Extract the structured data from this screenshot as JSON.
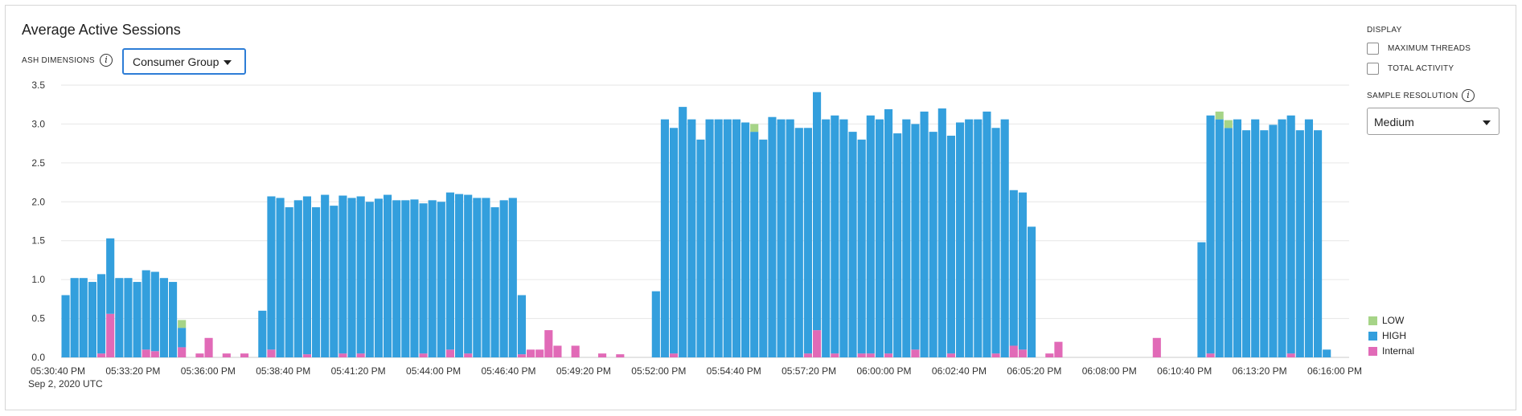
{
  "header": {
    "title": "Average Active Sessions",
    "dimensions_label": "ASH DIMENSIONS",
    "dimension_value": "Consumer Group"
  },
  "side": {
    "display_label": "DISPLAY",
    "max_threads_label": "MAXIMUM THREADS",
    "max_threads_checked": false,
    "total_activity_label": "TOTAL ACTIVITY",
    "total_activity_checked": false,
    "sample_resolution_label": "SAMPLE RESOLUTION",
    "sample_resolution_value": "Medium"
  },
  "chart_data": {
    "type": "bar",
    "stacked": true,
    "y_ticks": [
      0.0,
      0.5,
      1.0,
      1.5,
      2.0,
      2.5,
      3.0,
      3.5
    ],
    "ylim": [
      0,
      3.5
    ],
    "x_tick_labels": [
      "05:30:40 PM",
      "05:33:20 PM",
      "05:36:00 PM",
      "05:38:40 PM",
      "05:41:20 PM",
      "05:44:00 PM",
      "05:46:40 PM",
      "05:49:20 PM",
      "05:52:00 PM",
      "05:54:40 PM",
      "05:57:20 PM",
      "06:00:00 PM",
      "06:02:40 PM",
      "06:05:20 PM",
      "06:08:00 PM",
      "06:10:40 PM",
      "06:13:20 PM",
      "06:16:00 PM"
    ],
    "x_sublabel": "Sep 2, 2020 UTC",
    "grid": true,
    "legend_position": "bottom-right",
    "series": [
      {
        "name": "LOW",
        "color": "#a6d487",
        "values": [
          0,
          0,
          0,
          0,
          0,
          0,
          0,
          0,
          0,
          0,
          0,
          0,
          0,
          0.1,
          0,
          0,
          0,
          0,
          0,
          0,
          0,
          0,
          0,
          0,
          0,
          0,
          0,
          0,
          0,
          0,
          0,
          0,
          0,
          0,
          0,
          0,
          0,
          0,
          0,
          0,
          0,
          0,
          0,
          0,
          0,
          0,
          0,
          0,
          0,
          0,
          0,
          0,
          0,
          0,
          0,
          0,
          0,
          0,
          0,
          0,
          0,
          0,
          0,
          0,
          0,
          0,
          0,
          0,
          0,
          0,
          0,
          0,
          0,
          0,
          0,
          0,
          0,
          0.1,
          0,
          0,
          0,
          0,
          0,
          0,
          0,
          0,
          0,
          0,
          0,
          0,
          0,
          0,
          0,
          0,
          0,
          0,
          0,
          0,
          0,
          0,
          0,
          0,
          0,
          0,
          0,
          0,
          0,
          0,
          0,
          0,
          0,
          0,
          0,
          0,
          0,
          0,
          0,
          0,
          0,
          0,
          0,
          0,
          0,
          0,
          0,
          0,
          0,
          0,
          0,
          0.1,
          0.1,
          0,
          0,
          0,
          0,
          0,
          0,
          0,
          0,
          0,
          0,
          0,
          0,
          0
        ]
      },
      {
        "name": "HIGH",
        "color": "#339fdd",
        "values": [
          0.8,
          1.02,
          1.02,
          0.97,
          1.02,
          0.97,
          1.02,
          1.02,
          0.97,
          1.02,
          1.02,
          1.02,
          0.97,
          0.25,
          0,
          0,
          0,
          0,
          0,
          0,
          0,
          0,
          0.6,
          1.97,
          2.05,
          1.93,
          2.02,
          2.03,
          1.93,
          2.09,
          1.95,
          2.03,
          2.05,
          2.02,
          2.0,
          2.04,
          2.09,
          2.02,
          2.02,
          2.03,
          1.93,
          2.02,
          2.0,
          2.02,
          2.1,
          2.04,
          2.05,
          2.05,
          1.93,
          2.02,
          2.05,
          0.76,
          0,
          0,
          0,
          0,
          0,
          0,
          0,
          0,
          0,
          0,
          0,
          0,
          0,
          0,
          0.85,
          3.06,
          2.9,
          3.22,
          3.06,
          2.8,
          3.06,
          3.06,
          3.06,
          3.06,
          3.02,
          2.9,
          2.8,
          3.09,
          3.06,
          3.06,
          2.95,
          2.9,
          3.06,
          3.06,
          3.06,
          3.06,
          2.9,
          2.75,
          3.06,
          3.06,
          3.14,
          2.88,
          3.06,
          2.9,
          3.16,
          2.9,
          3.2,
          2.8,
          3.02,
          3.06,
          3.06,
          3.16,
          2.9,
          3.06,
          2.0,
          2.02,
          1.68,
          0,
          0,
          0,
          0,
          0,
          0,
          0,
          0,
          0,
          0,
          0,
          0,
          0,
          0,
          0,
          0,
          0,
          0,
          1.48,
          3.06,
          3.06,
          2.95,
          3.06,
          2.92,
          3.06,
          2.92,
          2.99,
          3.06,
          3.06,
          2.92,
          3.06,
          2.92,
          0.1,
          0
        ]
      },
      {
        "name": "Internal",
        "color": "#e16ab7",
        "values": [
          0,
          0,
          0,
          0,
          0.05,
          0.56,
          0,
          0,
          0,
          0.1,
          0.08,
          0,
          0,
          0.13,
          0,
          0.05,
          0.25,
          0,
          0.05,
          0,
          0.05,
          0,
          0,
          0.1,
          0,
          0,
          0,
          0.04,
          0,
          0,
          0,
          0.05,
          0,
          0.05,
          0,
          0,
          0,
          0,
          0,
          0,
          0.05,
          0,
          0,
          0.1,
          0,
          0.05,
          0,
          0,
          0,
          0,
          0,
          0.04,
          0.1,
          0.1,
          0.35,
          0.15,
          0,
          0.15,
          0,
          0,
          0.05,
          0,
          0.04,
          0,
          0,
          0,
          0,
          0,
          0.05,
          0,
          0,
          0,
          0,
          0,
          0,
          0,
          0,
          0,
          0,
          0,
          0,
          0,
          0,
          0.05,
          0.35,
          0,
          0.05,
          0,
          0,
          0.05,
          0.05,
          0,
          0.05,
          0,
          0,
          0.1,
          0,
          0,
          0,
          0.05,
          0,
          0,
          0,
          0,
          0.05,
          0,
          0.15,
          0.1,
          0,
          0,
          0.05,
          0.2,
          0,
          0,
          0,
          0,
          0,
          0,
          0,
          0,
          0,
          0,
          0.25,
          0,
          0,
          0,
          0,
          0,
          0.05,
          0,
          0,
          0,
          0,
          0,
          0,
          0,
          0,
          0.05
        ]
      }
    ]
  }
}
